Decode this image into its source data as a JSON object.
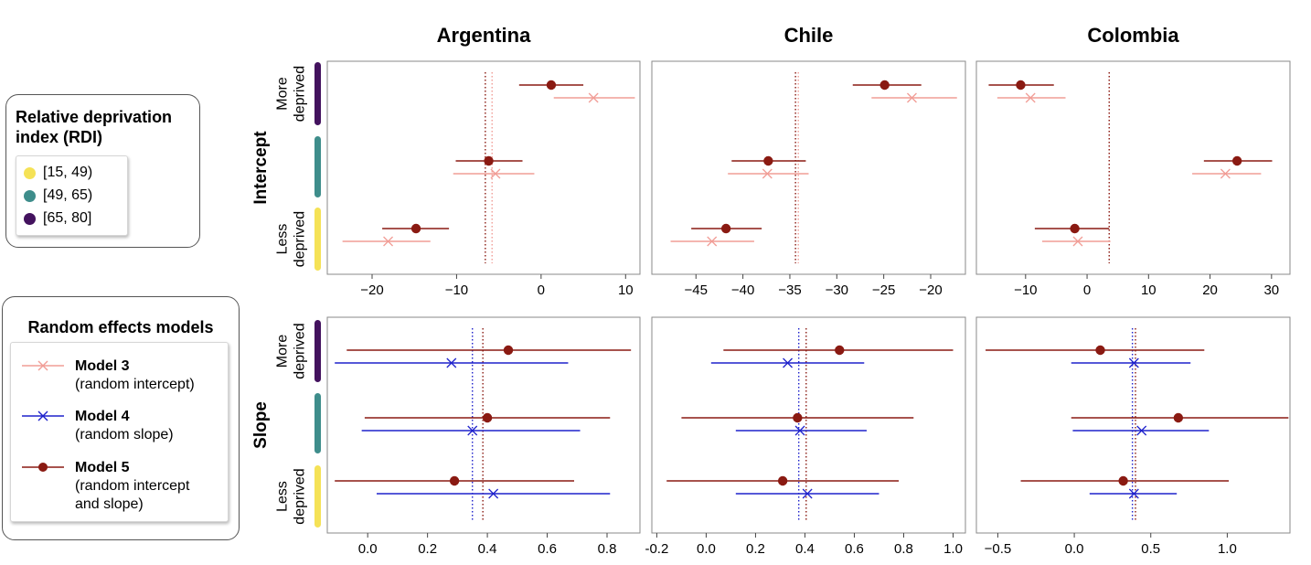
{
  "chart_data": {
    "type": "forest",
    "rows": [
      "Intercept",
      "Slope"
    ],
    "columns": [
      "Argentina",
      "Chile",
      "Colombia"
    ],
    "row_group_labels": {
      "top": "More\ndeprived",
      "bottom": "Less\ndeprived"
    },
    "groups": [
      {
        "label": "[15, 49)",
        "color": "#f5e256"
      },
      {
        "label": "[49, 65)",
        "color": "#3e8d8b"
      },
      {
        "label": "[65, 80]",
        "color": "#43125e"
      }
    ],
    "group_order_top_to_bottom": [
      "[65, 80]",
      "[49, 65)",
      "[15, 49)"
    ],
    "series": [
      {
        "name": "Model 3",
        "description": "(random intercept)",
        "color": "#f19d96",
        "marker": "x"
      },
      {
        "name": "Model 4",
        "description": "(random slope)",
        "color": "#1f22cc",
        "marker": "x"
      },
      {
        "name": "Model 5",
        "description": "(random intercept\nand slope)",
        "color": "#8a1a12",
        "marker": "o"
      }
    ],
    "panels": [
      {
        "row": "Intercept",
        "column": "Argentina",
        "xlim": [
          -25.3,
          11.7
        ],
        "xticks": [
          -20,
          -10,
          0,
          10
        ],
        "xtick_labels": [
          "−20",
          "−10",
          "0",
          "10"
        ],
        "reference_lines": [
          {
            "series": "Model 3",
            "x": -5.8
          },
          {
            "series": "Model 5",
            "x": -6.6
          }
        ],
        "estimates": [
          {
            "group": "[65, 80]",
            "series": "Model 5",
            "est": 1.2,
            "lo": -2.6,
            "hi": 5.0
          },
          {
            "group": "[65, 80]",
            "series": "Model 3",
            "est": 6.2,
            "lo": 1.5,
            "hi": 11.1
          },
          {
            "group": "[49, 65)",
            "series": "Model 5",
            "est": -6.2,
            "lo": -10.1,
            "hi": -2.2
          },
          {
            "group": "[49, 65)",
            "series": "Model 3",
            "est": -5.4,
            "lo": -10.4,
            "hi": -0.8
          },
          {
            "group": "[15, 49)",
            "series": "Model 5",
            "est": -14.8,
            "lo": -18.8,
            "hi": -10.9
          },
          {
            "group": "[15, 49)",
            "series": "Model 3",
            "est": -18.1,
            "lo": -23.5,
            "hi": -13.1
          }
        ]
      },
      {
        "row": "Intercept",
        "column": "Chile",
        "xlim": [
          -49.7,
          -16.3
        ],
        "xticks": [
          -45,
          -40,
          -35,
          -30,
          -25,
          -20
        ],
        "xtick_labels": [
          "−45",
          "−40",
          "−35",
          "−30",
          "−25",
          "−20"
        ],
        "reference_lines": [
          {
            "series": "Model 3",
            "x": -34.1
          },
          {
            "series": "Model 5",
            "x": -34.4
          }
        ],
        "estimates": [
          {
            "group": "[65, 80]",
            "series": "Model 5",
            "est": -24.9,
            "lo": -28.3,
            "hi": -21.0
          },
          {
            "group": "[65, 80]",
            "series": "Model 3",
            "est": -22.0,
            "lo": -26.3,
            "hi": -17.2
          },
          {
            "group": "[49, 65)",
            "series": "Model 5",
            "est": -37.3,
            "lo": -41.2,
            "hi": -33.3
          },
          {
            "group": "[49, 65)",
            "series": "Model 3",
            "est": -37.4,
            "lo": -41.6,
            "hi": -33.0
          },
          {
            "group": "[15, 49)",
            "series": "Model 5",
            "est": -41.8,
            "lo": -45.5,
            "hi": -38.0
          },
          {
            "group": "[15, 49)",
            "series": "Model 3",
            "est": -43.3,
            "lo": -47.7,
            "hi": -38.8
          }
        ]
      },
      {
        "row": "Intercept",
        "column": "Colombia",
        "xlim": [
          -18.0,
          33.0
        ],
        "xticks": [
          -10,
          0,
          10,
          20,
          30
        ],
        "xtick_labels": [
          "−10",
          "0",
          "10",
          "20",
          "30"
        ],
        "reference_lines": [
          {
            "series": "Model 3",
            "x": 3.6
          },
          {
            "series": "Model 5",
            "x": 3.6
          }
        ],
        "estimates": [
          {
            "group": "[65, 80]",
            "series": "Model 5",
            "est": -10.8,
            "lo": -16.0,
            "hi": -5.4
          },
          {
            "group": "[65, 80]",
            "series": "Model 3",
            "est": -9.2,
            "lo": -14.6,
            "hi": -3.5
          },
          {
            "group": "[49, 65)",
            "series": "Model 5",
            "est": 24.4,
            "lo": 19.0,
            "hi": 30.1
          },
          {
            "group": "[49, 65)",
            "series": "Model 3",
            "est": 22.5,
            "lo": 17.1,
            "hi": 28.3
          },
          {
            "group": "[15, 49)",
            "series": "Model 5",
            "est": -2.0,
            "lo": -8.5,
            "hi": 3.6
          },
          {
            "group": "[15, 49)",
            "series": "Model 3",
            "est": -1.5,
            "lo": -7.3,
            "hi": 3.8
          }
        ]
      },
      {
        "row": "Slope",
        "column": "Argentina",
        "xlim": [
          -0.135,
          0.91
        ],
        "xticks": [
          0.0,
          0.2,
          0.4,
          0.6,
          0.8
        ],
        "xtick_labels": [
          "0.0",
          "0.2",
          "0.4",
          "0.6",
          "0.8"
        ],
        "reference_lines": [
          {
            "series": "Model 4",
            "x": 0.35
          },
          {
            "series": "Model 5",
            "x": 0.385
          }
        ],
        "estimates": [
          {
            "group": "[65, 80]",
            "series": "Model 5",
            "est": 0.47,
            "lo": -0.07,
            "hi": 0.88
          },
          {
            "group": "[65, 80]",
            "series": "Model 4",
            "est": 0.28,
            "lo": -0.11,
            "hi": 0.67
          },
          {
            "group": "[49, 65)",
            "series": "Model 5",
            "est": 0.4,
            "lo": -0.01,
            "hi": 0.81
          },
          {
            "group": "[49, 65)",
            "series": "Model 4",
            "est": 0.35,
            "lo": -0.02,
            "hi": 0.71
          },
          {
            "group": "[15, 49)",
            "series": "Model 5",
            "est": 0.29,
            "lo": -0.11,
            "hi": 0.69
          },
          {
            "group": "[15, 49)",
            "series": "Model 4",
            "est": 0.42,
            "lo": 0.03,
            "hi": 0.81
          }
        ]
      },
      {
        "row": "Slope",
        "column": "Chile",
        "xlim": [
          -0.22,
          1.05
        ],
        "xticks": [
          -0.2,
          0.0,
          0.2,
          0.4,
          0.6,
          0.8,
          1.0
        ],
        "xtick_labels": [
          "-0.2",
          "0.0",
          "0.2",
          "0.4",
          "0.6",
          "0.8",
          "1.0"
        ],
        "reference_lines": [
          {
            "series": "Model 4",
            "x": 0.375
          },
          {
            "series": "Model 5",
            "x": 0.405
          }
        ],
        "estimates": [
          {
            "group": "[65, 80]",
            "series": "Model 5",
            "est": 0.54,
            "lo": 0.07,
            "hi": 1.0
          },
          {
            "group": "[65, 80]",
            "series": "Model 4",
            "est": 0.33,
            "lo": 0.02,
            "hi": 0.64
          },
          {
            "group": "[49, 65)",
            "series": "Model 5",
            "est": 0.37,
            "lo": -0.1,
            "hi": 0.84
          },
          {
            "group": "[49, 65)",
            "series": "Model 4",
            "est": 0.38,
            "lo": 0.12,
            "hi": 0.65
          },
          {
            "group": "[15, 49)",
            "series": "Model 5",
            "est": 0.31,
            "lo": -0.16,
            "hi": 0.78
          },
          {
            "group": "[15, 49)",
            "series": "Model 4",
            "est": 0.41,
            "lo": 0.12,
            "hi": 0.7
          }
        ]
      },
      {
        "row": "Slope",
        "column": "Colombia",
        "xlim": [
          -0.64,
          1.41
        ],
        "xticks": [
          -0.5,
          0.0,
          0.5,
          1.0
        ],
        "xtick_labels": [
          "−0.5",
          "0.0",
          "0.5",
          "1.0"
        ],
        "reference_lines": [
          {
            "series": "Model 4",
            "x": 0.38
          },
          {
            "series": "Model 5",
            "x": 0.4
          }
        ],
        "estimates": [
          {
            "group": "[65, 80]",
            "series": "Model 5",
            "est": 0.17,
            "lo": -0.58,
            "hi": 0.85
          },
          {
            "group": "[65, 80]",
            "series": "Model 4",
            "est": 0.39,
            "lo": -0.02,
            "hi": 0.76
          },
          {
            "group": "[49, 65)",
            "series": "Model 5",
            "est": 0.68,
            "lo": -0.02,
            "hi": 1.4
          },
          {
            "group": "[49, 65)",
            "series": "Model 4",
            "est": 0.44,
            "lo": -0.01,
            "hi": 0.88
          },
          {
            "group": "[15, 49)",
            "series": "Model 5",
            "est": 0.32,
            "lo": -0.35,
            "hi": 1.01
          },
          {
            "group": "[15, 49)",
            "series": "Model 4",
            "est": 0.39,
            "lo": 0.1,
            "hi": 0.67
          }
        ]
      }
    ]
  },
  "legend_rdi": {
    "title": "Relative deprivation index (RDI)",
    "items": [
      {
        "label": "[15, 49)",
        "color": "#f5e256"
      },
      {
        "label": "[49, 65)",
        "color": "#3e8d8b"
      },
      {
        "label": "[65, 80]",
        "color": "#43125e"
      }
    ]
  },
  "legend_models": {
    "title": "Random effects models",
    "items": [
      {
        "name": "Model 3",
        "description": "(random intercept)",
        "color": "#f19d96",
        "marker": "x"
      },
      {
        "name": "Model 4",
        "description": "(random slope)",
        "color": "#1f22cc",
        "marker": "x"
      },
      {
        "name": "Model 5",
        "description": "(random intercept\nand slope)",
        "color": "#8a1a12",
        "marker": "o"
      }
    ]
  }
}
